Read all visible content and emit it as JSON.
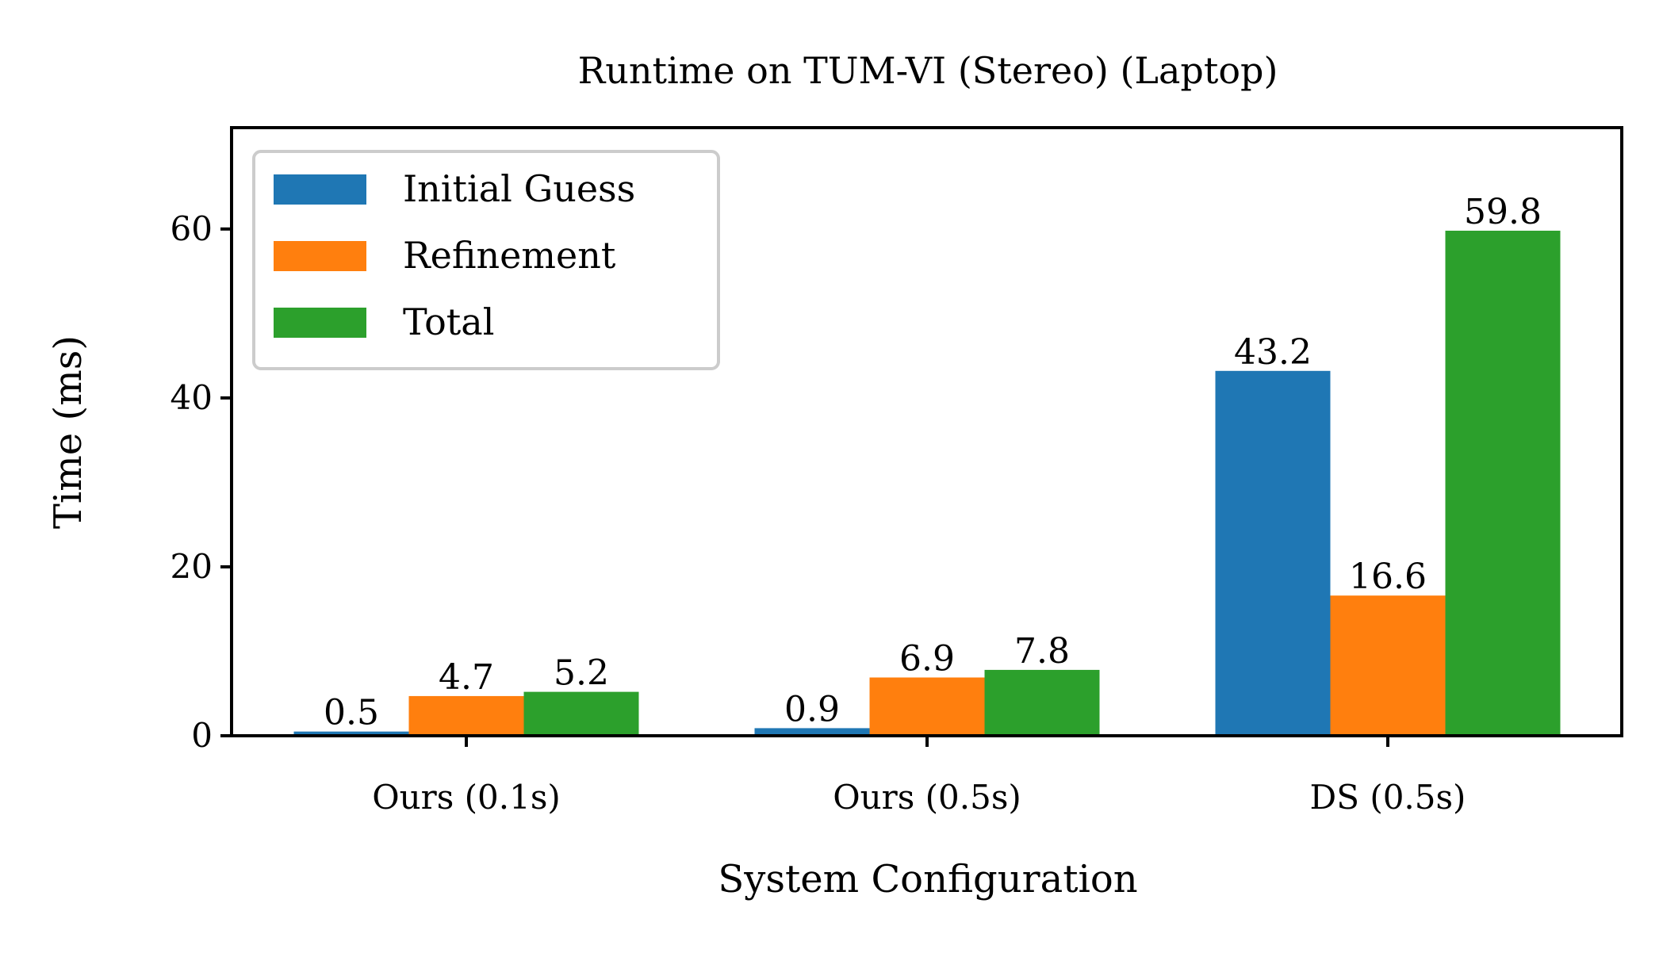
{
  "chart_data": {
    "type": "bar",
    "title": "Runtime on TUM-VI (Stereo) (Laptop)",
    "xlabel": "System Configuration",
    "ylabel": "Time (ms)",
    "categories": [
      "Ours (0.1s)",
      "Ours (0.5s)",
      "DS (0.5s)"
    ],
    "series": [
      {
        "name": "Initial Guess",
        "color": "#1f77b4",
        "values": [
          0.5,
          0.9,
          43.2
        ]
      },
      {
        "name": "Refinement",
        "color": "#ff7f0e",
        "values": [
          4.7,
          6.9,
          16.6
        ]
      },
      {
        "name": "Total",
        "color": "#2ca02c",
        "values": [
          5.2,
          7.8,
          59.8
        ]
      }
    ],
    "data_labels": [
      [
        "0.5",
        "0.9",
        "43.2"
      ],
      [
        "4.7",
        "6.9",
        "16.6"
      ],
      [
        "5.2",
        "7.8",
        "59.8"
      ]
    ],
    "ylim": [
      0,
      72
    ],
    "yticks": [
      0,
      20,
      40,
      60
    ],
    "ytick_labels": [
      "0",
      "20",
      "40",
      "60"
    ],
    "grid": false,
    "legend_position": "top-left"
  }
}
